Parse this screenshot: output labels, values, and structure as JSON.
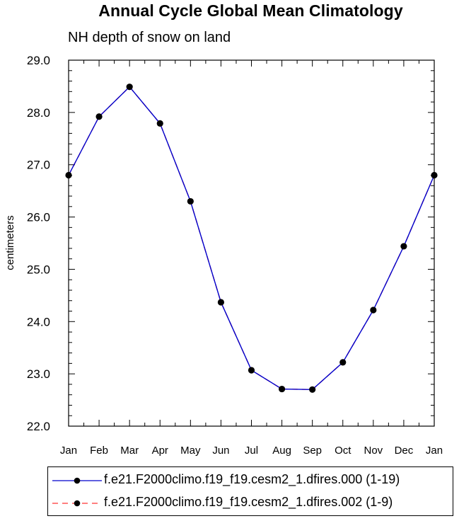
{
  "chart_data": {
    "type": "line",
    "title": "Annual Cycle Global Mean Climatology",
    "subtitle": "NH depth of snow on land",
    "ylabel": "centimeters",
    "xlabel": "",
    "categories": [
      "Jan",
      "Feb",
      "Mar",
      "Apr",
      "May",
      "Jun",
      "Jul",
      "Aug",
      "Sep",
      "Oct",
      "Nov",
      "Dec",
      "Jan"
    ],
    "ylim": [
      22.0,
      29.0
    ],
    "yticks": [
      "22.0",
      "23.0",
      "24.0",
      "25.0",
      "26.0",
      "27.0",
      "28.0",
      "29.0"
    ],
    "grid": false,
    "legend_position": "bottom",
    "series": [
      {
        "name": "f.e21.F2000climo.f19_f19.cesm2_1.dfires.000 (1-19)",
        "color": "#0000cc",
        "line_style": "solid",
        "marker": "filled-circle",
        "values": [
          26.8,
          27.92,
          28.49,
          27.79,
          26.3,
          24.37,
          23.07,
          22.71,
          22.7,
          23.22,
          24.22,
          25.44,
          26.8
        ]
      },
      {
        "name": "f.e21.F2000climo.f19_f19.cesm2_1.dfires.002 (1-9)",
        "color": "#ff3333",
        "line_style": "dashed",
        "marker": "filled-circle",
        "values": [
          26.8,
          27.92,
          28.49,
          27.79,
          26.3,
          24.37,
          23.07,
          22.71,
          22.7,
          23.22,
          24.22,
          25.44,
          26.8
        ]
      }
    ]
  }
}
